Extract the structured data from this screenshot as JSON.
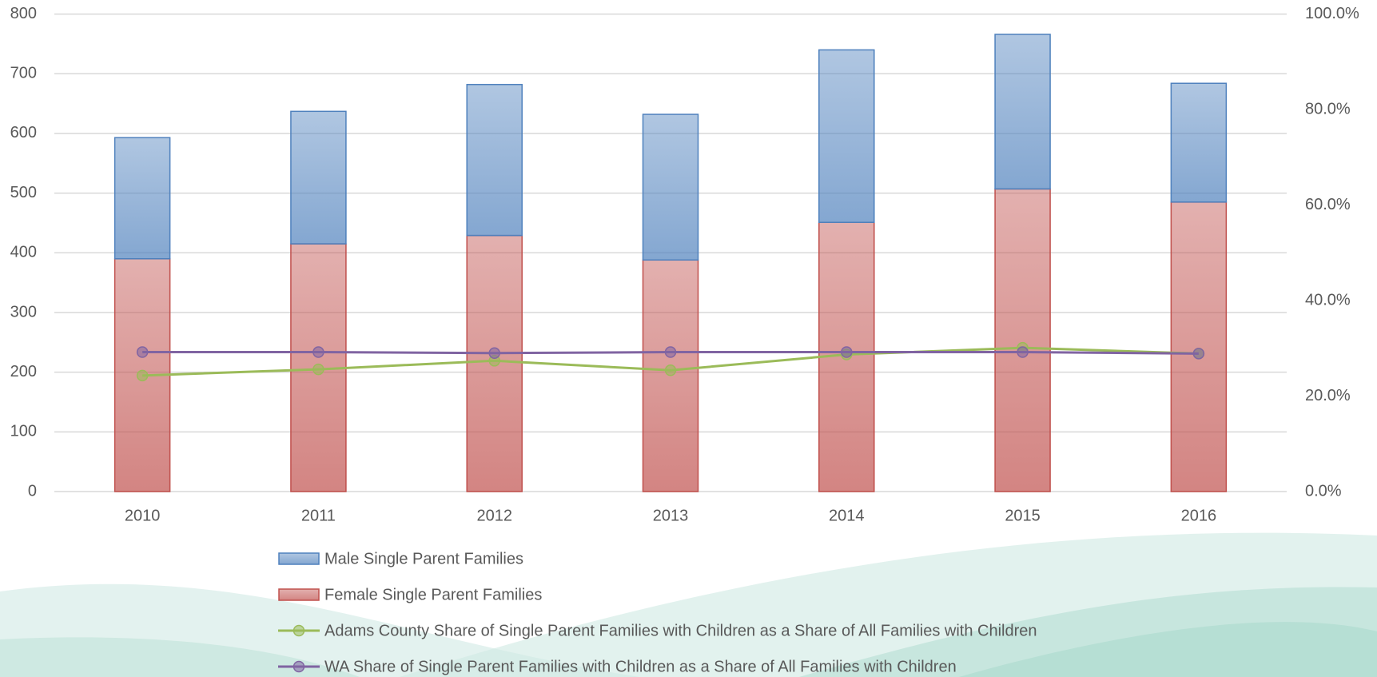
{
  "chart_data": {
    "type": "bar",
    "stacked": true,
    "categories": [
      "2010",
      "2011",
      "2012",
      "2013",
      "2014",
      "2015",
      "2016"
    ],
    "ylim": [
      0,
      800
    ],
    "yticks": [
      0,
      100,
      200,
      300,
      400,
      500,
      600,
      700,
      800
    ],
    "y2lim": [
      0,
      100
    ],
    "y2ticks": [
      {
        "value": 0,
        "label": "0.0%"
      },
      {
        "value": 20,
        "label": "20.0%"
      },
      {
        "value": 40,
        "label": "40.0%"
      },
      {
        "value": 60,
        "label": "60.0%"
      },
      {
        "value": 80,
        "label": "80.0%"
      },
      {
        "value": 100,
        "label": "100.0%"
      }
    ],
    "grid": true,
    "series": [
      {
        "name": "Male Single Parent Families",
        "type": "bar",
        "color": "#4f81bd",
        "values": [
          203,
          222,
          253,
          244,
          289,
          259,
          199
        ]
      },
      {
        "name": "Female Single Parent Families",
        "type": "bar",
        "color": "#c0504d",
        "values": [
          390,
          415,
          429,
          388,
          451,
          507,
          485
        ]
      },
      {
        "name": "Adams County Share of Single Parent Families with Children as a Share of All Families with Children",
        "type": "line",
        "axis": "y2",
        "color": "#9bbb59",
        "values": [
          24.3,
          25.6,
          27.4,
          25.4,
          28.7,
          30.1,
          28.9
        ]
      },
      {
        "name": "WA Share of Single Parent Families with Children as a Share of All Families with Children",
        "type": "line",
        "axis": "y2",
        "color": "#8064a2",
        "values": [
          29.2,
          29.2,
          29.0,
          29.2,
          29.2,
          29.2,
          28.9
        ]
      }
    ]
  }
}
